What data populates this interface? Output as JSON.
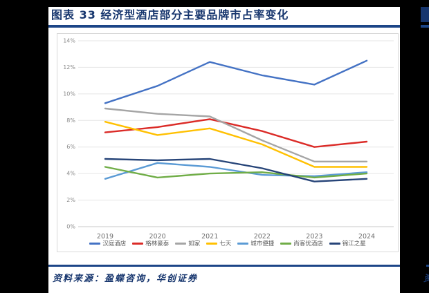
{
  "figure": {
    "title": "图表 33  经济型酒店部分主要品牌市占率变化",
    "source_note": "资料来源：盈蝶咨询，华创证券",
    "accent_color": "#17366E",
    "rule_color": "#1C4587",
    "adjacent_fragment_text": "资"
  },
  "chart_data": {
    "type": "line",
    "x": [
      "2019",
      "2020",
      "2021",
      "2022",
      "2023",
      "2024"
    ],
    "series": [
      {
        "name": "汉庭酒店",
        "color": "#4472C4",
        "values": [
          9.3,
          10.6,
          12.4,
          11.4,
          10.7,
          12.5
        ]
      },
      {
        "name": "格林豪泰",
        "color": "#DB2B27",
        "values": [
          7.1,
          7.5,
          8.1,
          7.2,
          6.0,
          6.4
        ]
      },
      {
        "name": "如家",
        "color": "#A5A5A5",
        "values": [
          8.9,
          8.5,
          8.3,
          6.5,
          4.9,
          4.9
        ]
      },
      {
        "name": "七天",
        "color": "#FFC000",
        "values": [
          7.9,
          6.9,
          7.4,
          6.2,
          4.5,
          4.5
        ]
      },
      {
        "name": "城市便捷",
        "color": "#5B9BD5",
        "values": [
          3.6,
          4.8,
          4.5,
          3.9,
          3.8,
          4.1
        ]
      },
      {
        "name": "尚客优酒店",
        "color": "#70AD47",
        "values": [
          4.5,
          3.7,
          4.0,
          4.1,
          3.7,
          4.0
        ]
      },
      {
        "name": "锦江之星",
        "color": "#264478",
        "values": [
          5.1,
          5.0,
          5.1,
          4.4,
          3.4,
          3.6
        ]
      }
    ],
    "title": "",
    "xlabel": "",
    "ylabel": "",
    "ylim": [
      0,
      14
    ],
    "ytick_step": 2,
    "ytick_format": "percent",
    "grid": true,
    "legend_position": "bottom"
  }
}
